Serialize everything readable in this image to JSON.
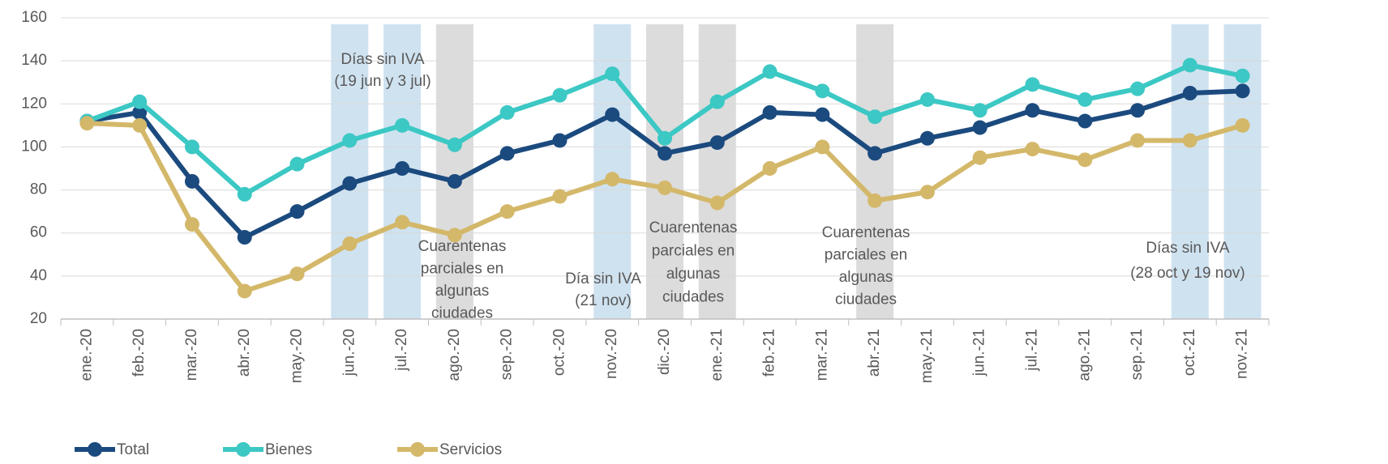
{
  "chart_data": {
    "type": "line",
    "categories": [
      "ene.-20",
      "feb.-20",
      "mar.-20",
      "abr.-20",
      "may.-20",
      "jun.-20",
      "jul.-20",
      "ago.-20",
      "sep.-20",
      "oct.-20",
      "nov.-20",
      "dic.-20",
      "ene.-21",
      "feb.-21",
      "mar.-21",
      "abr.-21",
      "may.-21",
      "jun.-21",
      "jul.-21",
      "ago.-21",
      "sep.-21",
      "oct.-21",
      "nov.-21"
    ],
    "series": [
      {
        "name": "Total",
        "color": "#1b4a7e",
        "values": [
          112,
          116,
          84,
          58,
          70,
          83,
          90,
          84,
          97,
          103,
          115,
          97,
          102,
          116,
          115,
          97,
          104,
          109,
          117,
          112,
          117,
          125,
          126
        ]
      },
      {
        "name": "Bienes",
        "color": "#3cc8c4",
        "values": [
          112,
          121,
          100,
          78,
          92,
          103,
          110,
          101,
          116,
          124,
          134,
          104,
          121,
          135,
          126,
          114,
          122,
          117,
          129,
          122,
          127,
          138,
          133
        ]
      },
      {
        "name": "Servicios",
        "color": "#d4b86a",
        "values": [
          111,
          110,
          64,
          33,
          41,
          55,
          65,
          59,
          70,
          77,
          85,
          81,
          74,
          90,
          100,
          75,
          79,
          95,
          99,
          94,
          103,
          103,
          110
        ]
      }
    ],
    "ylim": [
      20,
      160
    ],
    "yticks": [
      20,
      40,
      60,
      80,
      100,
      120,
      140,
      160
    ],
    "grid": true,
    "legend": "bottom-left",
    "shaded": [
      {
        "category": "jun.-20",
        "color": "#cfe2f0"
      },
      {
        "category": "jul.-20",
        "color": "#cfe2f0"
      },
      {
        "category": "ago.-20",
        "color": "#dcdcdc"
      },
      {
        "category": "nov.-20",
        "color": "#cfe2f0"
      },
      {
        "category": "dic.-20",
        "color": "#dcdcdc"
      },
      {
        "category": "ene.-21",
        "color": "#dcdcdc"
      },
      {
        "category": "abr.-21",
        "color": "#dcdcdc"
      },
      {
        "category": "oct.-21",
        "color": "#cfe2f0"
      },
      {
        "category": "nov.-21",
        "color": "#cfe2f0"
      }
    ],
    "annotations": [
      {
        "lines": [
          "Días sin IVA",
          "(19 jun y 3 jul)"
        ]
      },
      {
        "lines": [
          "Cuarentenas",
          "parciales en",
          "algunas",
          "ciudades"
        ]
      },
      {
        "lines": [
          "Día sin IVA",
          "(21 nov)"
        ]
      },
      {
        "lines": [
          "Cuarentenas",
          "parciales en",
          "algunas",
          "ciudades"
        ]
      },
      {
        "lines": [
          "Cuarentenas",
          "parciales en",
          "algunas",
          "ciudades"
        ]
      },
      {
        "lines": [
          "Días sin IVA",
          "(28 oct y 19 nov)"
        ]
      }
    ]
  }
}
